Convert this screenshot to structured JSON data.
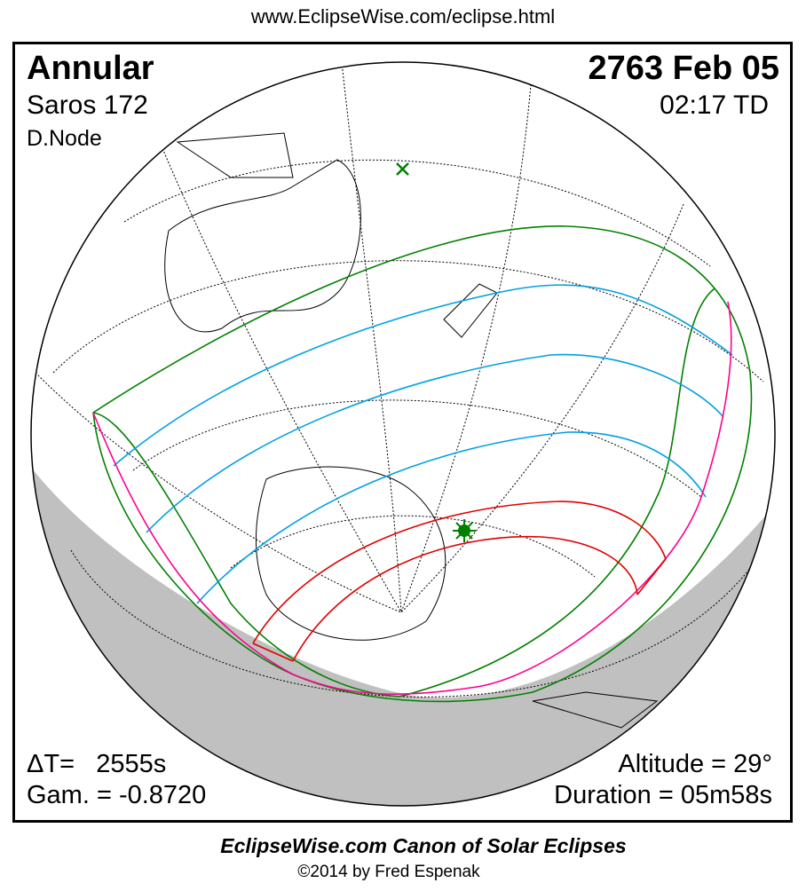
{
  "header_url": "www.EclipseWise.com/eclipse.html",
  "eclipse_type": "Annular",
  "saros": "Saros 172",
  "node": "D.Node",
  "date": "2763 Feb 05",
  "time": "02:17 TD",
  "delta_t": "ΔT=   2555s",
  "gamma": "Gam. = -0.8720",
  "altitude": "Altitude = 29°",
  "duration": "Duration = 05m58s",
  "footer_title": "EclipseWise.com Canon of Solar Eclipses",
  "footer_copyright": "©2014 by Fred Espenak",
  "colors": {
    "penumbra": "#008000",
    "umbra_limits": "#e00000",
    "partial_lines": "#00a0e0",
    "rise_set": "#ff0090",
    "night": "#c0c0c0",
    "greatest_eclipse": "#008000"
  }
}
